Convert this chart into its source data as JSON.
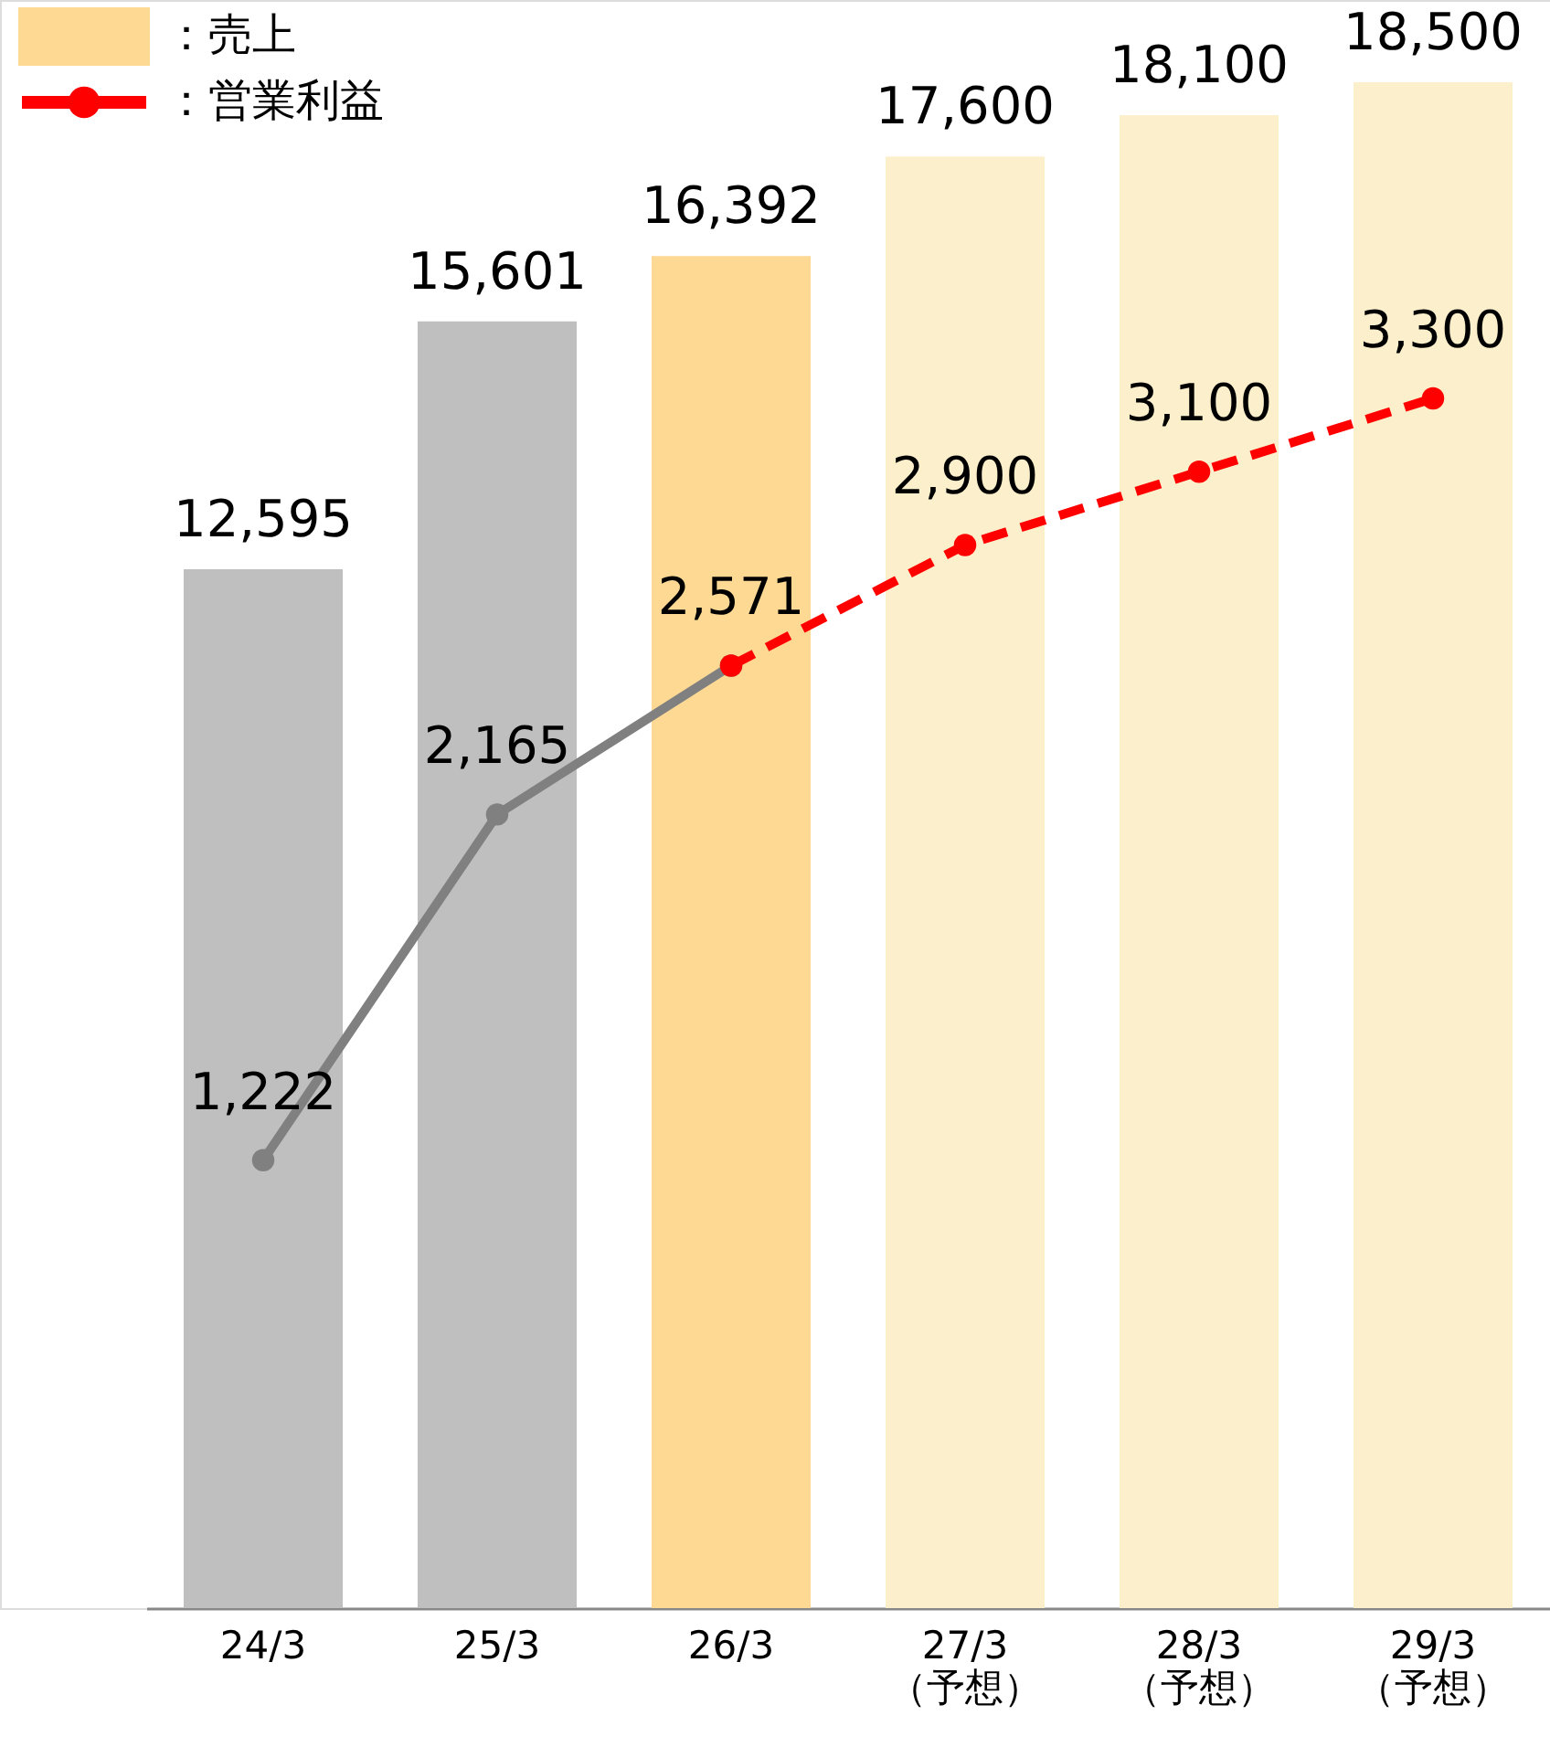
{
  "chart_data": {
    "type": "bar",
    "categories": [
      "24/3",
      "25/3",
      "26/3",
      "27/3\n（予想）",
      "28/3\n（予想）",
      "29/3\n（予想）"
    ],
    "series": [
      {
        "name": "：売上",
        "color": "#fdd994",
        "colors": [
          "#bfbfbf",
          "#bfbfbf",
          "#fdd994",
          "#fcf0cc",
          "#fcf0cc",
          "#fcf0cc"
        ],
        "values": [
          12595,
          15601,
          16392,
          17600,
          18100,
          18500
        ],
        "value_labels": [
          "12,595",
          "15,601",
          "16,392",
          "17,600",
          "18,100",
          "18,500"
        ]
      },
      {
        "type": "line",
        "axis": "y2",
        "color": "#808080",
        "line_style": "solid",
        "marker": "circle",
        "values": [
          1222,
          2165,
          2571,
          null,
          null,
          null
        ],
        "value_labels": [
          "1,222",
          "2,165",
          "2,571",
          null,
          null,
          null
        ]
      },
      {
        "name": "：営業利益",
        "type": "line",
        "axis": "y2",
        "color": "#ff0000",
        "line_style": "dashed",
        "marker": "circle",
        "values": [
          null,
          null,
          2571,
          2900,
          3100,
          3300
        ],
        "value_labels": [
          null,
          null,
          null,
          "2,900",
          "3,100",
          "3,300"
        ]
      }
    ],
    "tick_labels": "x",
    "grid": false,
    "legend": "top left"
  }
}
